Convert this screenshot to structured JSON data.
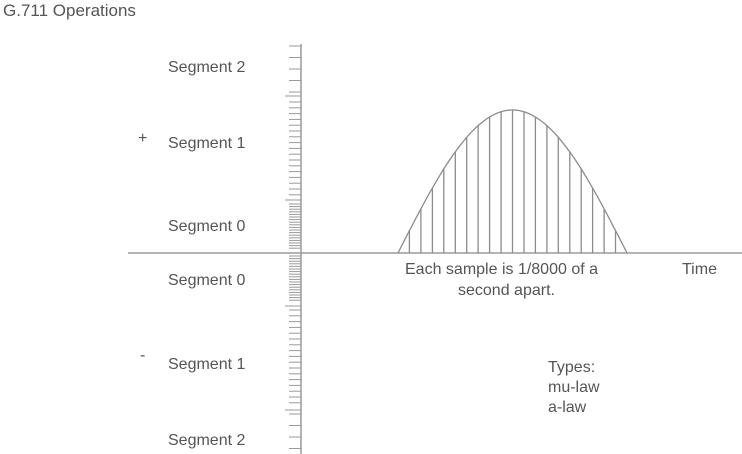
{
  "title": "G.711  Operations",
  "positive_sign": "+",
  "negative_sign": "-",
  "segments": {
    "upper": [
      "Segment 2",
      "Segment 1",
      "Segment 0"
    ],
    "lower": [
      "Segment 0",
      "Segment 1",
      "Segment 2"
    ]
  },
  "time_label": "Time",
  "caption": [
    "Each sample is 1/8000 of a",
    "second apart."
  ],
  "types": {
    "heading": "Types:",
    "items": [
      "mu-law",
      "a-law"
    ]
  },
  "colors": {
    "text": "#555555",
    "axis": "#9a9a9a",
    "curve": "#8c8c8c"
  }
}
